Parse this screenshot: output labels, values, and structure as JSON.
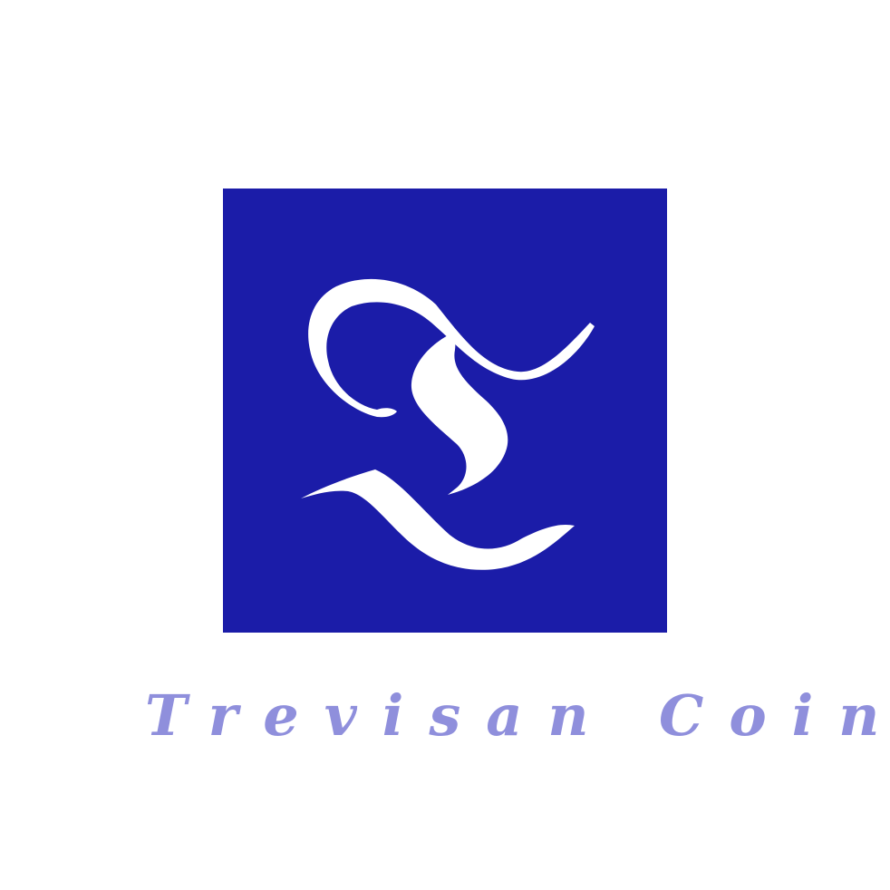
{
  "logo": {
    "icon": "blackletter-t-monogram-icon",
    "background_color": "#1b1ca8",
    "glyph_color": "#ffffff"
  },
  "wordmark": {
    "text": "Trevisan Coin",
    "color": "#8f8fdc"
  },
  "page": {
    "background_color": "#ffffff"
  }
}
